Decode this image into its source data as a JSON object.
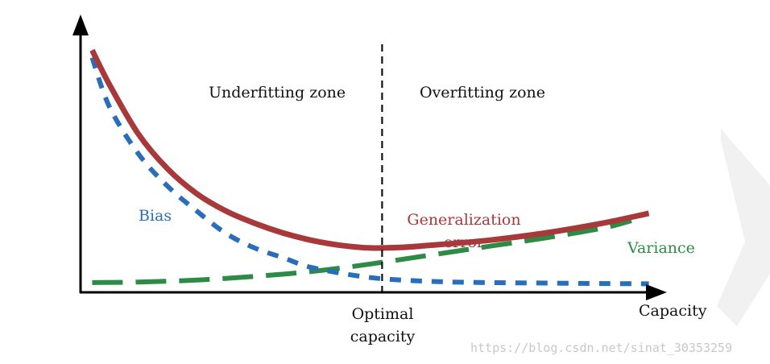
{
  "chart_data": {
    "type": "line",
    "title": "",
    "xlabel": "Capacity",
    "ylabel": "",
    "xlim": [
      0,
      10
    ],
    "ylim": [
      0,
      10
    ],
    "grid": false,
    "legend": "none",
    "regions": [
      {
        "label": "Underfitting zone"
      },
      {
        "label": "Overfitting zone"
      }
    ],
    "annotations": {
      "optimal_line": "Optimal capacity",
      "optimal_line_1": "Optimal",
      "optimal_line_2": "capacity"
    },
    "optimal_x": 5.2,
    "series": [
      {
        "name": "Bias",
        "style": "dotted",
        "color": "#2a6ebb",
        "x": [
          0.2,
          0.5,
          1.0,
          1.5,
          2.0,
          2.5,
          3.0,
          3.5,
          4.0,
          5.0,
          6.0,
          7.0,
          8.0,
          9.0,
          9.8
        ],
        "y": [
          9.3,
          7.3,
          5.4,
          4.1,
          3.1,
          2.2,
          1.6,
          1.2,
          0.8,
          0.4,
          0.25,
          0.2,
          0.18,
          0.16,
          0.15
        ]
      },
      {
        "name": "Generalization error",
        "label_line_1": "Generalization",
        "label_line_2": "error",
        "style": "solid",
        "color": "#a8393a",
        "x": [
          0.2,
          0.5,
          1.0,
          1.5,
          2.0,
          2.5,
          3.0,
          3.5,
          4.0,
          4.5,
          5.0,
          5.5,
          6.0,
          7.0,
          8.0,
          9.0,
          9.8
        ],
        "y": [
          9.6,
          8.2,
          6.2,
          4.8,
          3.8,
          3.1,
          2.6,
          2.2,
          1.9,
          1.7,
          1.6,
          1.62,
          1.7,
          1.9,
          2.2,
          2.6,
          3.0
        ]
      },
      {
        "name": "Variance",
        "style": "dashed",
        "color": "#2e8b45",
        "x": [
          0.2,
          1.0,
          2.0,
          3.0,
          4.0,
          5.0,
          6.0,
          7.0,
          8.0,
          9.0,
          9.5
        ],
        "y": [
          0.2,
          0.22,
          0.3,
          0.45,
          0.65,
          0.95,
          1.3,
          1.65,
          2.0,
          2.4,
          2.7
        ]
      }
    ]
  },
  "watermark": "https://blog.csdn.net/sinat_30353259"
}
